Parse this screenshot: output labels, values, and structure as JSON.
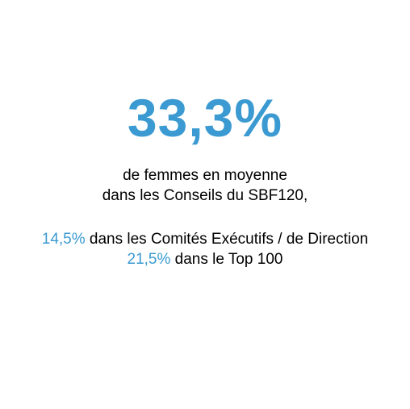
{
  "headline": {
    "value": "33,3%"
  },
  "description": {
    "line1": "de femmes en moyenne",
    "line2": "dans les Conseils du SBF120,"
  },
  "stats": [
    {
      "value": "14,5%",
      "text": " dans les Comités Exécutifs / de Direction"
    },
    {
      "value": "21,5%",
      "text": " dans le Top 100"
    }
  ],
  "colors": {
    "accent": "#3a9ad1",
    "text": "#000000",
    "background": "#ffffff"
  }
}
